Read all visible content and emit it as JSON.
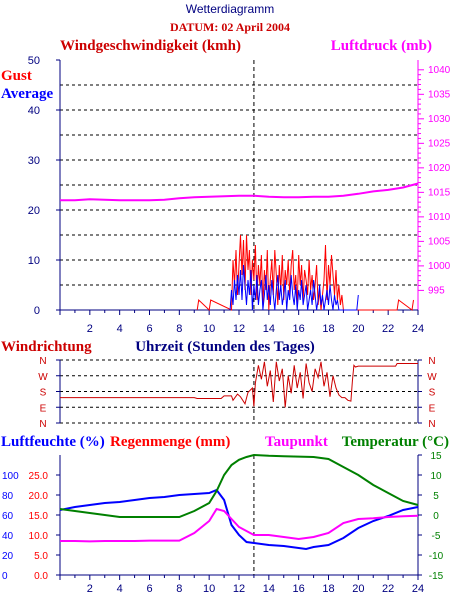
{
  "header": {
    "title": "Wetterdiagramm",
    "date_label": "DATUM: 02 April 2004"
  },
  "colors": {
    "gust": "#ff0000",
    "average": "#0000ff",
    "pressure": "#ff00ff",
    "wind_direction": "#cc0000",
    "humidity": "#0000ff",
    "rain": "#ff0000",
    "dewpoint": "#ff00ff",
    "temperature": "#008000",
    "frame": "#000080",
    "title": "#000080",
    "headline": "#cc0000"
  },
  "chart_data": [
    {
      "type": "line",
      "title": "",
      "left_axis_label": "Windgeschwindigkeit (kmh)",
      "right_axis_label": "Luftdruck (mb)",
      "legend": [
        "Gust",
        "Average"
      ],
      "xlabel": "",
      "x_ticks": [
        2,
        4,
        6,
        8,
        10,
        12,
        14,
        16,
        18,
        20,
        22,
        24
      ],
      "xlim": [
        0,
        24
      ],
      "ylim_left": [
        0,
        50
      ],
      "y_ticks_left": [
        0,
        10,
        20,
        30,
        40,
        50
      ],
      "ylim_right": [
        991,
        1042
      ],
      "y_ticks_right": [
        995,
        1000,
        1005,
        1010,
        1015,
        1020,
        1025,
        1030,
        1035,
        1040
      ],
      "grid": "horizontal dashed",
      "marker_time": 13,
      "series": [
        {
          "name": "Gust",
          "axis": "left",
          "x": [
            9.2,
            9.3,
            10.0,
            10.1,
            11.5,
            11.6,
            11.7,
            11.8,
            11.9,
            12.0,
            12.1,
            12.2,
            12.3,
            12.4,
            12.5,
            12.6,
            12.7,
            12.8,
            12.9,
            13.0,
            13.1,
            13.2,
            13.3,
            13.4,
            13.5,
            13.6,
            13.7,
            13.8,
            13.9,
            14.0,
            14.1,
            14.2,
            14.3,
            14.4,
            14.5,
            14.6,
            14.7,
            14.8,
            14.9,
            15.0,
            15.1,
            15.2,
            15.3,
            15.4,
            15.5,
            15.6,
            15.7,
            15.8,
            15.9,
            16.0,
            16.1,
            16.2,
            16.3,
            16.4,
            16.5,
            16.6,
            16.7,
            16.8,
            16.9,
            17.0,
            17.1,
            17.2,
            17.3,
            17.4,
            17.5,
            17.6,
            17.7,
            17.8,
            17.9,
            18.0,
            18.1,
            18.2,
            18.3,
            18.4,
            18.5,
            18.6,
            18.7,
            18.8,
            18.9,
            19.0,
            22.6,
            22.7,
            23.6,
            23.7
          ],
          "values": [
            0,
            2,
            0,
            2,
            0,
            10,
            5,
            12,
            3,
            9,
            15,
            7,
            14,
            4,
            15,
            8,
            12,
            3,
            10,
            6,
            13,
            2,
            9,
            5,
            11,
            1,
            8,
            4,
            12,
            0,
            6,
            10,
            3,
            12,
            7,
            1,
            9,
            4,
            11,
            2,
            8,
            5,
            10,
            3,
            9,
            12,
            4,
            7,
            1,
            11,
            5,
            9,
            2,
            8,
            6,
            3,
            10,
            4,
            7,
            2,
            5,
            9,
            1,
            4,
            0,
            3,
            6,
            13,
            2,
            9,
            5,
            11,
            7,
            3,
            8,
            2,
            5,
            1,
            3,
            0,
            0,
            2,
            0,
            2
          ]
        },
        {
          "name": "Average",
          "axis": "left",
          "x": [
            11.4,
            11.5,
            11.6,
            11.7,
            11.8,
            11.9,
            12.0,
            12.1,
            12.2,
            12.3,
            12.4,
            12.5,
            12.6,
            12.7,
            12.8,
            12.9,
            13.0,
            13.1,
            13.2,
            13.3,
            13.4,
            13.5,
            13.6,
            13.7,
            13.8,
            13.9,
            14.0,
            14.1,
            14.2,
            14.3,
            14.4,
            14.5,
            14.6,
            14.7,
            14.8,
            14.9,
            15.0,
            15.1,
            15.2,
            15.3,
            15.4,
            15.5,
            15.6,
            15.7,
            15.8,
            15.9,
            16.0,
            16.1,
            16.2,
            16.3,
            16.4,
            16.5,
            16.6,
            16.7,
            16.8,
            16.9,
            17.0,
            17.1,
            17.2,
            17.3,
            17.4,
            17.5,
            17.6,
            17.7,
            17.8,
            17.9,
            18.0,
            18.1,
            18.2,
            18.3,
            18.4,
            18.5,
            18.6,
            18.7,
            19.9,
            20.0
          ],
          "values": [
            0,
            4,
            1,
            6,
            2,
            7,
            3,
            8,
            2,
            9,
            5,
            1,
            6,
            3,
            8,
            0,
            5,
            2,
            7,
            1,
            4,
            6,
            0,
            3,
            7,
            2,
            5,
            1,
            6,
            3,
            0,
            4,
            7,
            2,
            5,
            1,
            3,
            6,
            0,
            4,
            2,
            7,
            3,
            1,
            5,
            0,
            4,
            2,
            6,
            1,
            3,
            5,
            0,
            2,
            4,
            1,
            6,
            3,
            0,
            2,
            5,
            1,
            3,
            0,
            2,
            4,
            1,
            5,
            2,
            0,
            3,
            1,
            2,
            0,
            0,
            3
          ]
        },
        {
          "name": "Luftdruck",
          "axis": "right",
          "x": [
            0,
            1,
            2,
            3,
            4,
            5,
            6,
            7,
            8,
            9,
            10,
            11,
            12,
            13,
            14,
            15,
            16,
            17,
            18,
            19,
            20,
            21,
            22,
            23,
            23.5,
            24
          ],
          "values": [
            1013.4,
            1013.4,
            1013.6,
            1013.5,
            1013.4,
            1013.4,
            1013.4,
            1013.5,
            1013.8,
            1014.0,
            1014.1,
            1014.2,
            1014.3,
            1014.3,
            1014.1,
            1014.0,
            1014.0,
            1014.1,
            1014.1,
            1014.3,
            1014.7,
            1015.2,
            1015.5,
            1016.0,
            1016.4,
            1016.8
          ]
        }
      ]
    },
    {
      "type": "line",
      "title": "",
      "left_axis_label": "Windrichtung",
      "xlabel": "Uhrzeit (Stunden des Tages)",
      "y_categories": [
        "N",
        "W",
        "S",
        "E",
        "N"
      ],
      "xlim": [
        0,
        24
      ],
      "marker_time": 13,
      "series": [
        {
          "name": "Windrichtung",
          "x": [
            0,
            9.0,
            9.2,
            10.8,
            11.0,
            11.5,
            11.6,
            11.9,
            12.1,
            12.4,
            12.6,
            12.9,
            13.0,
            13.1,
            13.3,
            13.5,
            13.7,
            13.9,
            14.1,
            14.3,
            14.5,
            14.7,
            14.9,
            15.1,
            15.3,
            15.5,
            15.7,
            15.9,
            16.1,
            16.3,
            16.5,
            16.7,
            16.9,
            17.1,
            17.3,
            17.5,
            17.7,
            17.9,
            18.1,
            18.3,
            18.5,
            18.7,
            18.9,
            19.1,
            19.3,
            19.5,
            19.6,
            19.7,
            19.8,
            20.0,
            22.5,
            22.6,
            24
          ],
          "values": [
            145,
            145,
            140,
            140,
            155,
            155,
            130,
            165,
            150,
            110,
            175,
            200,
            95,
            230,
            330,
            250,
            350,
            210,
            300,
            120,
            350,
            240,
            310,
            90,
            270,
            170,
            330,
            200,
            290,
            140,
            340,
            230,
            180,
            310,
            260,
            350,
            210,
            290,
            150,
            270,
            200,
            160,
            145,
            145,
            130,
            125,
            240,
            330,
            320,
            325,
            325,
            340,
            340
          ]
        }
      ]
    },
    {
      "type": "line",
      "title": "",
      "labels": [
        "Luftfeuchte (%)",
        "Regenmenge (mm)",
        "Taupunkt",
        "Temperatur (°C)"
      ],
      "x_ticks": [
        2,
        4,
        6,
        8,
        10,
        12,
        14,
        16,
        18,
        20,
        22,
        24
      ],
      "xlim": [
        0,
        24
      ],
      "y_ticks_humidity": [
        0,
        20,
        40,
        60,
        80,
        100
      ],
      "y_ticks_rain": [
        0.0,
        5.0,
        10.0,
        15.0,
        20.0,
        25.0
      ],
      "ylim_rain": [
        0,
        30
      ],
      "y_ticks_temperature": [
        15,
        10,
        5,
        0,
        -5,
        -10,
        -15
      ],
      "ylim_temperature": [
        -15,
        15
      ],
      "marker_time": 13,
      "series": [
        {
          "name": "Luftfeuchte",
          "axis": "humidity",
          "x": [
            0,
            1,
            2,
            3,
            4,
            5,
            6,
            7,
            8,
            9,
            10,
            10.5,
            11,
            11.5,
            12,
            12.5,
            13,
            14,
            15,
            16,
            16.5,
            17,
            18,
            19,
            20,
            21,
            22,
            23,
            24
          ],
          "values": [
            65,
            68,
            70,
            72,
            73,
            75,
            77,
            78,
            80,
            81,
            82,
            85,
            75,
            50,
            40,
            33,
            32,
            30,
            29,
            27,
            26,
            28,
            30,
            37,
            47,
            54,
            59,
            65,
            68
          ]
        },
        {
          "name": "Taupunkt",
          "axis": "temperature",
          "x": [
            0,
            1,
            2,
            3,
            4,
            5,
            6,
            7,
            8,
            9,
            10,
            10.5,
            11,
            11.5,
            12,
            13,
            14,
            15,
            16,
            17,
            18,
            19,
            20,
            21,
            22,
            23,
            24
          ],
          "values": [
            -6.5,
            -6.5,
            -6.6,
            -6.5,
            -6.5,
            -6.5,
            -6.4,
            -6.4,
            -6.4,
            -4.5,
            -1.5,
            1.5,
            1.0,
            -1.0,
            -3.0,
            -5.0,
            -5.0,
            -5.5,
            -6.0,
            -5.5,
            -4.5,
            -2.0,
            -1.0,
            -0.8,
            -0.5,
            -0.3,
            -0.2
          ]
        },
        {
          "name": "Temperatur",
          "axis": "temperature",
          "x": [
            0,
            1,
            2,
            3,
            4,
            5,
            6,
            7,
            8,
            9,
            10,
            10.5,
            11,
            11.5,
            12,
            12.5,
            13,
            14,
            15,
            16,
            17,
            18,
            19,
            20,
            21,
            22,
            23,
            24
          ],
          "values": [
            1.5,
            1.0,
            0.5,
            0,
            -0.5,
            -0.5,
            -0.5,
            -0.5,
            -0.5,
            1.0,
            3.0,
            6.0,
            10.0,
            12.5,
            13.8,
            14.5,
            15.0,
            14.8,
            14.7,
            14.6,
            14.5,
            14.0,
            12.0,
            10.0,
            7.5,
            5.5,
            3.5,
            2.5
          ]
        }
      ]
    }
  ]
}
